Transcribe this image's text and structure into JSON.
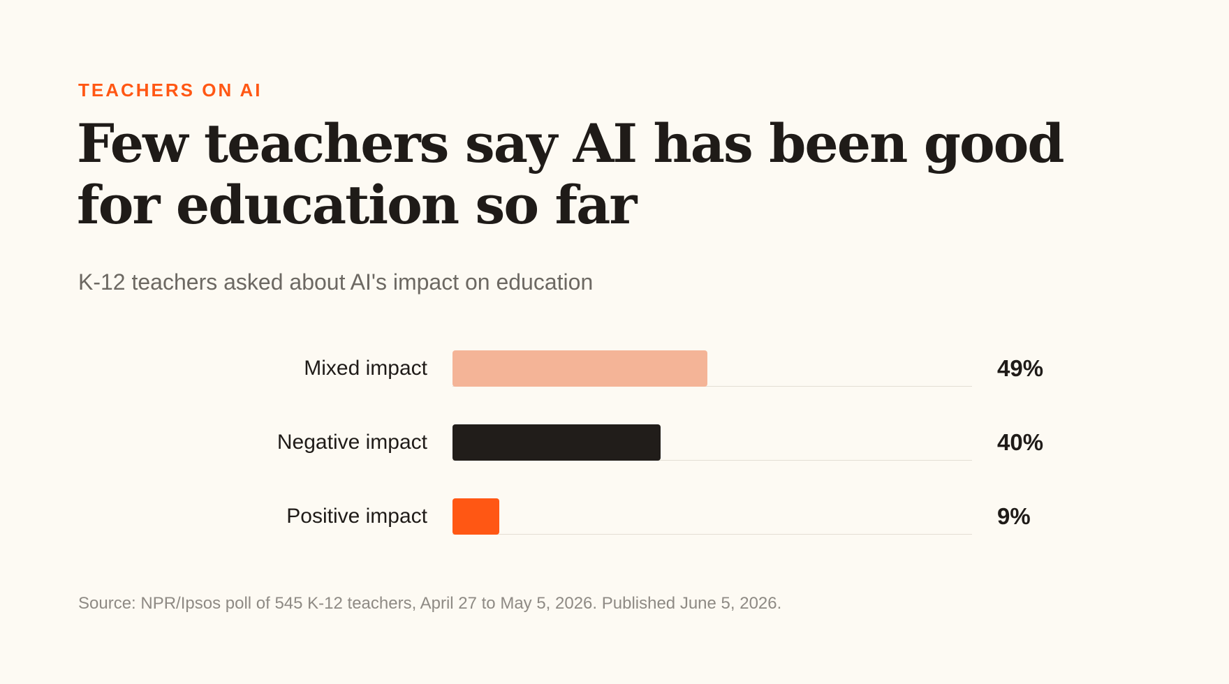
{
  "eyebrow": "TEACHERS ON AI",
  "source": "Source: NPR/Ipsos poll of 545 K-12 teachers, April 27 to May 5, 2026. Published June 5, 2026.",
  "colors": {
    "background": "#fdfaf3",
    "accent": "#ff5714",
    "text": "#1f1b18",
    "muted": "#6c6862"
  },
  "chart_data": {
    "type": "bar",
    "orientation": "horizontal",
    "title": "Few teachers say AI has been good for education so far",
    "subtitle": "K-12 teachers asked about AI's impact on education",
    "xlim": [
      0,
      100
    ],
    "grid": false,
    "categories": [
      "Mixed impact",
      "Negative impact",
      "Positive impact"
    ],
    "values": [
      49,
      40,
      9
    ],
    "value_labels": [
      "49%",
      "40%",
      "9%"
    ],
    "bar_colors": [
      "#f4b497",
      "#211d1a",
      "#ff5714"
    ]
  }
}
